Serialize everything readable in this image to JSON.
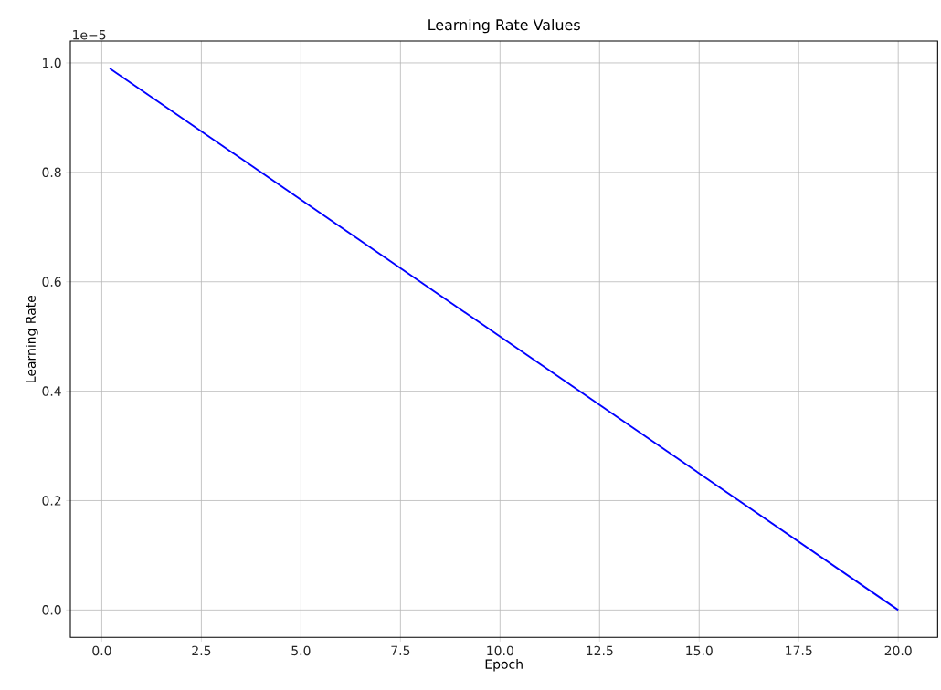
{
  "chart_data": {
    "type": "line",
    "title": "Learning Rate Values",
    "xlabel": "Epoch",
    "ylabel": "Learning Rate",
    "x": [
      0.2,
      20
    ],
    "series": [
      {
        "color": "#0000ff",
        "values": [
          0.99,
          0
        ]
      }
    ],
    "xlim": [
      -0.79,
      20.99
    ],
    "xticks": [
      {
        "value": 0,
        "label": "0.0"
      },
      2.5,
      {
        "value": 5,
        "label": "5.0"
      },
      7.5,
      {
        "value": 10,
        "label": "10.0"
      },
      12.5,
      {
        "value": 15,
        "label": "15.0"
      },
      17.5,
      {
        "value": 20,
        "label": "20.0"
      }
    ],
    "ylim": [
      -0.05,
      1.04
    ],
    "yticks": [
      {
        "value": 0,
        "label": "0.0"
      },
      0.2,
      0.4,
      0.6,
      0.8,
      {
        "value": 1,
        "label": "1.0"
      }
    ],
    "annotations": [
      "1e−5"
    ],
    "grid": true,
    "marker": "none",
    "line_style": "solid"
  }
}
